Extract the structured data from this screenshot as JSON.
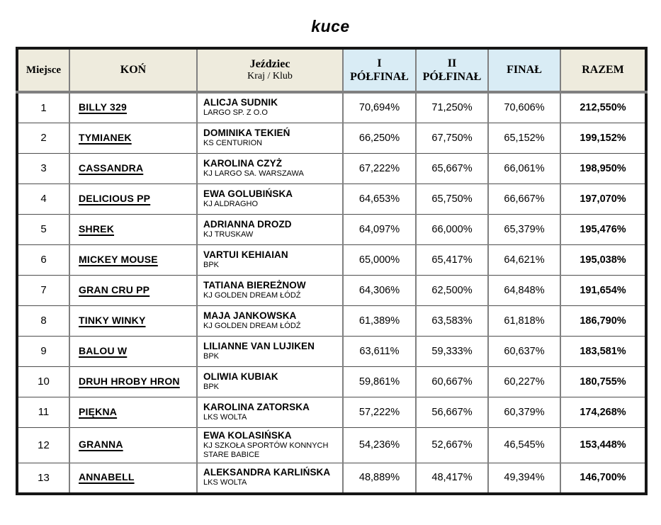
{
  "title": "kuce",
  "colors": {
    "header_beige": "#eeebdd",
    "header_blue": "#d9ecf5",
    "outer_border": "#161616",
    "inner_border": "#808080"
  },
  "table": {
    "headers": {
      "place": "Miejsce",
      "horse": "KOŃ",
      "rider_line1": "Jeździec",
      "rider_line2": "Kraj / Klub",
      "semi1_line1": "I",
      "semi1_line2": "PÓŁFINAŁ",
      "semi2_line1": "II",
      "semi2_line2": "PÓŁFINAŁ",
      "final": "FINAŁ",
      "total": "RAZEM"
    },
    "rows": [
      {
        "place": "1",
        "horse": "BILLY 329",
        "rider": "ALICJA SUDNIK",
        "club": "LARGO SP. Z O.O",
        "semi1": "70,694%",
        "semi2": "71,250%",
        "final": "70,606%",
        "total": "212,550%"
      },
      {
        "place": "2",
        "horse": "TYMIANEK",
        "rider": "DOMINIKA TEKIEŃ",
        "club": "KS CENTURION",
        "semi1": "66,250%",
        "semi2": "67,750%",
        "final": "65,152%",
        "total": "199,152%"
      },
      {
        "place": "3",
        "horse": "CASSANDRA",
        "rider": "KAROLINA CZYŻ",
        "club": "KJ LARGO SA. WARSZAWA",
        "semi1": "67,222%",
        "semi2": "65,667%",
        "final": "66,061%",
        "total": "198,950%"
      },
      {
        "place": "4",
        "horse": "DELICIOUS PP",
        "rider": "EWA GOLUBIŃSKA",
        "club": "KJ ALDRAGHO",
        "semi1": "64,653%",
        "semi2": "65,750%",
        "final": "66,667%",
        "total": "197,070%"
      },
      {
        "place": "5",
        "horse": "SHREK",
        "rider": "ADRIANNA DROZD",
        "club": "KJ TRUSKAW",
        "semi1": "64,097%",
        "semi2": "66,000%",
        "final": "65,379%",
        "total": "195,476%"
      },
      {
        "place": "6",
        "horse": "MICKEY MOUSE",
        "rider": "VARTUI KEHIAIAN",
        "club": "BPK",
        "semi1": "65,000%",
        "semi2": "65,417%",
        "final": "64,621%",
        "total": "195,038%"
      },
      {
        "place": "7",
        "horse": "GRAN CRU PP",
        "rider": "TATIANA BIEREŻNOW",
        "club": "KJ GOLDEN DREAM ŁÓDŹ",
        "semi1": "64,306%",
        "semi2": "62,500%",
        "final": "64,848%",
        "total": "191,654%"
      },
      {
        "place": "8",
        "horse": "TINKY WINKY",
        "rider": "MAJA JANKOWSKA",
        "club": "KJ GOLDEN DREAM ŁÓDŹ",
        "semi1": "61,389%",
        "semi2": "63,583%",
        "final": "61,818%",
        "total": "186,790%"
      },
      {
        "place": "9",
        "horse": "BALOU W",
        "rider": "LILIANNE VAN LUJIKEN",
        "club": "BPK",
        "semi1": "63,611%",
        "semi2": "59,333%",
        "final": "60,637%",
        "total": "183,581%"
      },
      {
        "place": "10",
        "horse": "DRUH HROBY HRON",
        "rider": "OLIWIA KUBIAK",
        "club": "BPK",
        "semi1": "59,861%",
        "semi2": "60,667%",
        "final": "60,227%",
        "total": "180,755%"
      },
      {
        "place": "11",
        "horse": "PIĘKNA",
        "rider": "KAROLINA ZATORSKA",
        "club": "LKS WOLTA",
        "semi1": "57,222%",
        "semi2": "56,667%",
        "final": "60,379%",
        "total": "174,268%"
      },
      {
        "place": "12",
        "horse": "GRANNA",
        "rider": "EWA KOLASIŃSKA",
        "club": "KJ SZKOŁA SPORTÓW KONNYCH STARE BABICE",
        "semi1": "54,236%",
        "semi2": "52,667%",
        "final": "46,545%",
        "total": "153,448%"
      },
      {
        "place": "13",
        "horse": "ANNABELL",
        "rider": "ALEKSANDRA KARLIŃSKA",
        "club": "LKS WOLTA",
        "semi1": "48,889%",
        "semi2": "48,417%",
        "final": "49,394%",
        "total": "146,700%"
      }
    ]
  }
}
